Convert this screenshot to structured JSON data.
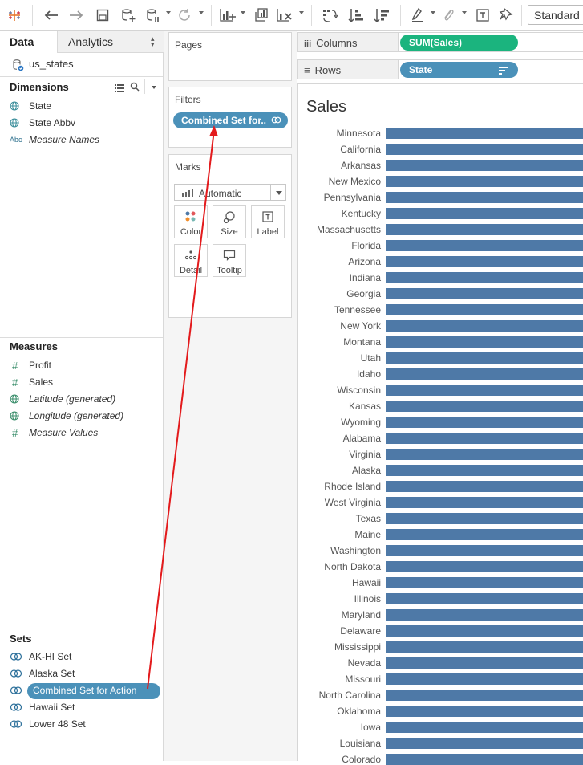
{
  "toolbar": {
    "mode_select": "Standard",
    "icons": [
      "tableau-logo-icon",
      "undo-icon",
      "redo-icon",
      "save-icon",
      "new-datasource-icon",
      "pause-updates-icon",
      "refresh-icon",
      "new-worksheet-icon",
      "duplicate-sheet-icon",
      "clear-sheet-icon",
      "swap-rows-columns-icon",
      "sort-ascending-icon",
      "sort-descending-icon",
      "highlight-icon",
      "group-icon",
      "label-icon",
      "pin-icon"
    ]
  },
  "left_pane": {
    "tabs": {
      "data": "Data",
      "analytics": "Analytics"
    },
    "datasource": "us_states",
    "dimensions": {
      "header": "Dimensions",
      "items": [
        {
          "label": "State",
          "icon": "globe-icon"
        },
        {
          "label": "State Abbv",
          "icon": "globe-icon"
        },
        {
          "label": "Measure Names",
          "icon": "abc-icon"
        }
      ]
    },
    "measures": {
      "header": "Measures",
      "items": [
        {
          "label": "Profit",
          "icon": "hash-icon"
        },
        {
          "label": "Sales",
          "icon": "hash-icon"
        },
        {
          "label": "Latitude (generated)",
          "icon": "globe-icon"
        },
        {
          "label": "Longitude (generated)",
          "icon": "globe-icon"
        },
        {
          "label": "Measure Values",
          "icon": "hash-icon"
        }
      ]
    },
    "sets": {
      "header": "Sets",
      "items": [
        {
          "label": "AK-HI Set"
        },
        {
          "label": "Alaska Set"
        },
        {
          "label": "Combined Set for Action"
        },
        {
          "label": "Hawaii Set"
        },
        {
          "label": "Lower 48 Set"
        }
      ]
    }
  },
  "cards": {
    "pages": {
      "title": "Pages"
    },
    "filters": {
      "title": "Filters",
      "pill": "Combined Set for.."
    },
    "marks": {
      "title": "Marks",
      "type": "Automatic",
      "buttons": [
        "Color",
        "Size",
        "Label",
        "Detail",
        "Tooltip"
      ]
    }
  },
  "shelves": {
    "columns": {
      "label": "Columns",
      "pill": "SUM(Sales)",
      "pill_color": "#1bb47e"
    },
    "rows": {
      "label": "Rows",
      "pill": "State",
      "pill_color": "#4b91b9"
    }
  },
  "view": {
    "title": "Sales",
    "bar_color": "#4e79a7",
    "states": [
      "Minnesota",
      "California",
      "Arkansas",
      "New Mexico",
      "Pennsylvania",
      "Kentucky",
      "Massachusetts",
      "Florida",
      "Arizona",
      "Indiana",
      "Georgia",
      "Tennessee",
      "New York",
      "Montana",
      "Utah",
      "Idaho",
      "Wisconsin",
      "Kansas",
      "Wyoming",
      "Alabama",
      "Virginia",
      "Alaska",
      "Rhode Island",
      "West Virginia",
      "Texas",
      "Maine",
      "Washington",
      "North Dakota",
      "Hawaii",
      "Illinois",
      "Maryland",
      "Delaware",
      "Mississippi",
      "Nevada",
      "Missouri",
      "North Carolina",
      "Oklahoma",
      "Iowa",
      "Louisiana",
      "Colorado"
    ]
  },
  "annotation": {
    "arrow_color": "#e31a1c"
  }
}
